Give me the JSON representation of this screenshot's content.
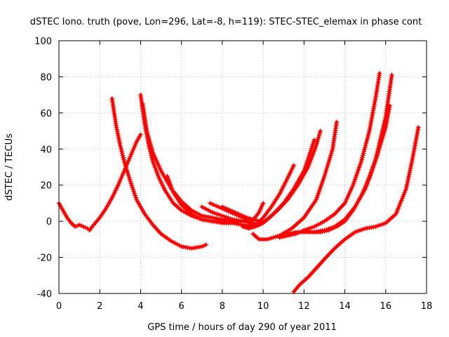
{
  "chart_data": {
    "type": "scatter",
    "title": "dSTEC Iono. truth (pove, Lon=296, Lat=-8, h=119): STEC-STEC_elemax in phase cont",
    "xlabel": "GPS time / hours of day 290 of year 2011",
    "ylabel": "dSTEC  / TECUs",
    "xlim": [
      0,
      18
    ],
    "ylim": [
      -40,
      100
    ],
    "xticks": [
      0,
      2,
      4,
      6,
      8,
      10,
      12,
      14,
      16,
      18
    ],
    "yticks": [
      -40,
      -20,
      0,
      20,
      40,
      60,
      80,
      100
    ],
    "grid": true,
    "legend": "none",
    "marker": "plus",
    "color": "#ff0000",
    "series": [
      {
        "x": [
          0,
          0.2,
          0.4,
          0.6,
          0.8,
          1.0,
          1.2,
          1.4,
          1.5,
          1.7,
          2.0,
          2.3,
          2.6,
          2.9,
          3.2,
          3.5,
          3.8,
          4.0
        ],
        "y": [
          10,
          6,
          2,
          -1,
          -3,
          -2,
          -3,
          -4,
          -5,
          -2,
          2,
          7,
          13,
          20,
          28,
          36,
          44,
          48
        ]
      },
      {
        "x": [
          2.6,
          2.8,
          3.0,
          3.2,
          3.5,
          3.8,
          4.2,
          4.6,
          5.0,
          5.5,
          6.0,
          6.5,
          7.0,
          7.2
        ],
        "y": [
          68,
          53,
          42,
          33,
          22,
          12,
          4,
          -2,
          -7,
          -11,
          -14,
          -15,
          -14,
          -13
        ]
      },
      {
        "x": [
          4.0,
          4.2,
          4.4,
          4.6,
          4.9,
          5.2,
          5.6,
          6.0,
          6.5,
          7.0,
          7.5,
          8.0,
          8.5,
          9.0
        ],
        "y": [
          70,
          54,
          42,
          33,
          24,
          17,
          10,
          6,
          3,
          1,
          0,
          0,
          0,
          0
        ]
      },
      {
        "x": [
          4.1,
          4.3,
          4.6,
          5.0,
          5.5,
          6.0,
          6.5,
          7.0,
          7.5,
          8.0,
          8.5,
          9.0,
          9.4
        ],
        "y": [
          65,
          50,
          38,
          28,
          18,
          11,
          6,
          3,
          2,
          1,
          0,
          0,
          0
        ]
      },
      {
        "x": [
          5.3,
          5.6,
          6.0,
          6.5,
          7.0,
          7.5,
          8.0,
          8.5,
          9.0,
          9.5,
          9.8
        ],
        "y": [
          25,
          16,
          9,
          4,
          1,
          0,
          -1,
          -1,
          -2,
          -3,
          -2
        ]
      },
      {
        "x": [
          7.0,
          7.5,
          8.0,
          8.5,
          9.0,
          9.5,
          9.8
        ],
        "y": [
          8,
          5,
          3,
          1,
          0,
          -1,
          -2
        ]
      },
      {
        "x": [
          7.4,
          7.8,
          8.2,
          8.6,
          9.0,
          9.4,
          9.6,
          9.8,
          10.0
        ],
        "y": [
          10,
          8,
          6,
          4,
          2,
          0,
          2,
          5,
          10
        ]
      },
      {
        "x": [
          8.0,
          8.4,
          8.8,
          9.2,
          9.5,
          9.8
        ],
        "y": [
          8,
          6,
          4,
          2,
          1,
          0
        ]
      },
      {
        "x": [
          9.0,
          9.3,
          9.6,
          10.0,
          10.4,
          10.8,
          11.2,
          11.5
        ],
        "y": [
          -3,
          -4,
          -3,
          2,
          8,
          15,
          24,
          31
        ]
      },
      {
        "x": [
          9.3,
          9.6,
          10.0,
          10.5,
          11.0,
          11.5,
          12.0,
          12.3,
          12.5
        ],
        "y": [
          -2,
          -3,
          -1,
          4,
          10,
          18,
          28,
          38,
          45
        ]
      },
      {
        "x": [
          9.5,
          9.8,
          10.2,
          10.7,
          11.2,
          11.7,
          12.2,
          12.6,
          12.8
        ],
        "y": [
          -1,
          -2,
          1,
          6,
          12,
          20,
          30,
          42,
          50
        ]
      },
      {
        "x": [
          9.5,
          9.8,
          10.2,
          10.8,
          11.4,
          12.0,
          12.6,
          13.0,
          13.4,
          13.6
        ],
        "y": [
          -7,
          -10,
          -10,
          -8,
          -4,
          2,
          12,
          25,
          40,
          55
        ]
      },
      {
        "x": [
          10.8,
          11.2,
          11.6,
          12.0,
          12.5,
          13.0,
          13.5,
          14.0,
          14.4,
          14.8,
          15.2,
          15.5,
          15.7
        ],
        "y": [
          -9,
          -8,
          -7,
          -5,
          -3,
          0,
          4,
          10,
          20,
          33,
          50,
          68,
          82
        ]
      },
      {
        "x": [
          11.2,
          11.6,
          12.0,
          12.5,
          13.0,
          13.5,
          14.0,
          14.5,
          15.0,
          15.5,
          16.0,
          16.3
        ],
        "y": [
          -7,
          -6,
          -6,
          -6,
          -5,
          -3,
          1,
          8,
          18,
          34,
          58,
          81
        ]
      },
      {
        "x": [
          12.0,
          12.4,
          12.8,
          13.2,
          13.6,
          14.0,
          14.4,
          14.8,
          15.2,
          15.6,
          16.0,
          16.2
        ],
        "y": [
          -5,
          -6,
          -6,
          -5,
          -3,
          0,
          6,
          14,
          24,
          37,
          52,
          64
        ]
      },
      {
        "x": [
          11.5,
          11.8,
          12.2,
          12.6,
          13.0,
          13.5,
          14.0,
          14.5,
          15.0,
          15.5,
          16.0,
          16.5,
          17.0,
          17.3,
          17.6
        ],
        "y": [
          -39,
          -35,
          -31,
          -26,
          -21,
          -15,
          -10,
          -6,
          -4,
          -3,
          -1,
          4,
          18,
          34,
          52
        ]
      }
    ]
  }
}
